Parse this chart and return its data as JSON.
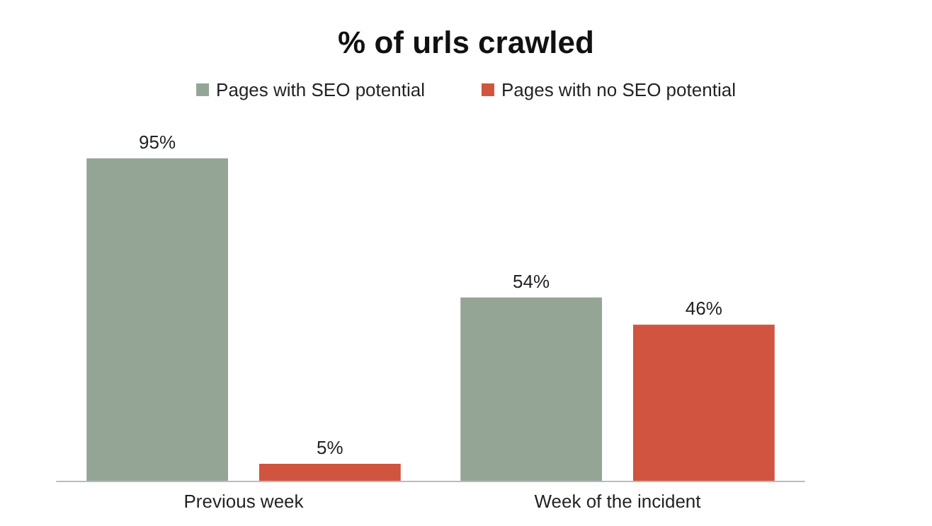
{
  "chart_data": {
    "type": "bar",
    "title": "% of urls crawled",
    "categories": [
      "Previous week",
      "Week of the incident"
    ],
    "series": [
      {
        "name": "Pages with SEO potential",
        "color": "#94a596",
        "values": [
          95,
          54
        ],
        "value_labels": [
          "95%",
          "54%"
        ]
      },
      {
        "name": "Pages with no SEO potential",
        "color": "#d0543f",
        "values": [
          5,
          46
        ],
        "value_labels": [
          "5%",
          "46%"
        ]
      }
    ],
    "legend": "top",
    "tick_labels": "x",
    "grid": false
  }
}
